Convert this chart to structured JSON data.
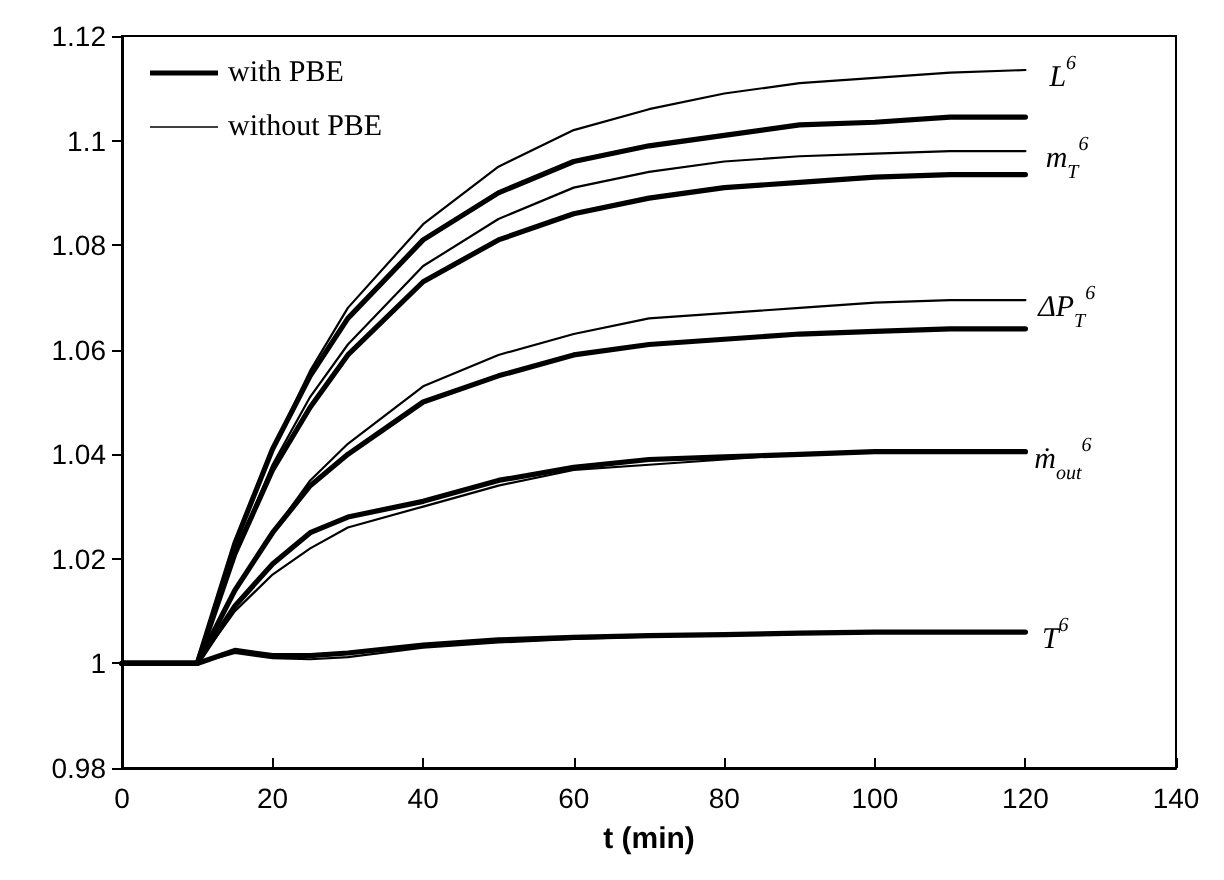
{
  "chart_data": {
    "type": "line",
    "xlabel": "t (min)",
    "xlim": [
      0,
      140
    ],
    "xticks": [
      0,
      20,
      40,
      60,
      80,
      100,
      120,
      140
    ],
    "ylim": [
      0.98,
      1.12
    ],
    "yticks": [
      0.98,
      1,
      1.02,
      1.04,
      1.06,
      1.08,
      1.1,
      1.12
    ],
    "x": [
      0,
      10,
      15,
      20,
      25,
      30,
      40,
      50,
      60,
      70,
      80,
      90,
      100,
      110,
      120
    ],
    "series": [
      {
        "name": "with PBE",
        "color": "#000000",
        "values": [
          1,
          1,
          1.023,
          1.041,
          1.055,
          1.066,
          1.081,
          1.09,
          1.096,
          1.099,
          1.101,
          1.103,
          1.1035,
          1.1045,
          1.1045
        ]
      },
      {
        "name": "without PBE",
        "color": "#000000",
        "values": [
          1,
          1,
          1.023,
          1.041,
          1.056,
          1.068,
          1.084,
          1.095,
          1.102,
          1.106,
          1.109,
          1.111,
          1.112,
          1.113,
          1.1135
        ]
      },
      {
        "color": "#000000",
        "values": [
          1,
          1,
          1.021,
          1.037,
          1.049,
          1.059,
          1.073,
          1.081,
          1.086,
          1.089,
          1.091,
          1.092,
          1.093,
          1.0935,
          1.0935
        ]
      },
      {
        "color": "#000000",
        "values": [
          1,
          1,
          1.021,
          1.038,
          1.051,
          1.061,
          1.076,
          1.085,
          1.091,
          1.094,
          1.096,
          1.097,
          1.0975,
          1.098,
          1.098
        ]
      },
      {
        "color": "#000000",
        "values": [
          1,
          1,
          1.014,
          1.025,
          1.034,
          1.04,
          1.05,
          1.055,
          1.059,
          1.061,
          1.062,
          1.063,
          1.0635,
          1.064,
          1.064
        ]
      },
      {
        "color": "#000000",
        "values": [
          1,
          1,
          1.014,
          1.025,
          1.035,
          1.042,
          1.053,
          1.059,
          1.063,
          1.066,
          1.067,
          1.068,
          1.069,
          1.0695,
          1.0695
        ]
      },
      {
        "color": "#000000",
        "values": [
          1,
          1,
          1.011,
          1.019,
          1.025,
          1.028,
          1.031,
          1.035,
          1.0375,
          1.039,
          1.0395,
          1.04,
          1.0405,
          1.0405,
          1.0405
        ]
      },
      {
        "color": "#000000",
        "values": [
          1,
          1,
          1.01,
          1.017,
          1.022,
          1.026,
          1.03,
          1.034,
          1.037,
          1.038,
          1.039,
          1.04,
          1.0405,
          1.0405,
          1.0405
        ]
      },
      {
        "color": "#000000",
        "values": [
          1,
          1,
          1.0025,
          1.0015,
          1.0015,
          1.002,
          1.0035,
          1.0045,
          1.005,
          1.0053,
          1.0055,
          1.0058,
          1.006,
          1.006,
          1.006
        ]
      },
      {
        "color": "#000000",
        "values": [
          1,
          1,
          1.002,
          1.001,
          1.0008,
          1.0012,
          1.003,
          1.004,
          1.0047,
          1.0051,
          1.0055,
          1.0058,
          1.006,
          1.006,
          1.006
        ]
      }
    ],
    "annotations": [
      {
        "text": "L$^{6}$",
        "x": 120,
        "y": 1.1135
      },
      {
        "text": "m$_{T}$$^{6}$",
        "x": 119.5,
        "y": 1.098
      },
      {
        "text": "ΔP$_{T}$$^{6}$",
        "x": 118.5,
        "y": 1.0695
      },
      {
        "text": "ṁ$_{out}$$^{6}$",
        "x": 118,
        "y": 1.0405
      },
      {
        "text": "T$^{6}$",
        "x": 119,
        "y": 1.006
      }
    ],
    "legend": "top left",
    "marker": "none",
    "line_style": "solid",
    "grid": false
  }
}
